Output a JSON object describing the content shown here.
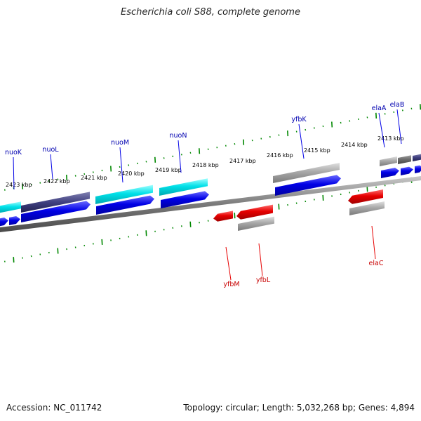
{
  "title": "Escherichia coli S88, complete genome",
  "footer": {
    "accession": "Accession: NC_011742",
    "summary": "Topology: circular; Length: 5,032,268 bp; Genes: 4,894"
  },
  "kbp_labels": [
    "2423 kbp",
    "2422 kbp",
    "2421 kbp",
    "2420 kbp",
    "2419 kbp",
    "2418 kbp",
    "2417 kbp",
    "2416 kbp",
    "2415 kbp",
    "2414 kbp",
    "2413 kbp"
  ],
  "gene_labels_forward": [
    "nuoK",
    "nuoL",
    "nuoM",
    "nuoN",
    "yfbK",
    "elaA",
    "elaB"
  ],
  "gene_labels_reverse": [
    "yfbM",
    "yfbL",
    "elaC"
  ],
  "colors": {
    "cds_blue": "#0000e6",
    "cds_red": "#e60000",
    "gene_cyan": "#00e0e8",
    "gene_grey": "#a8a8a8",
    "gene_darkgrey": "#707070",
    "backbone": "#7a7a7a",
    "tick_green": "#008800",
    "forward_label": "#0000b0",
    "reverse_label": "#c80000"
  }
}
